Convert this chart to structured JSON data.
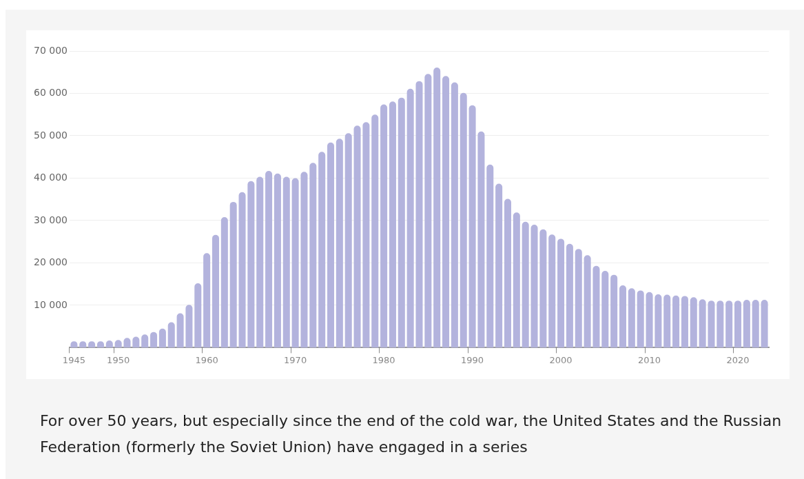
{
  "chart_data": {
    "type": "bar",
    "categories": [
      "1945",
      null,
      null,
      null,
      null,
      "1950",
      null,
      null,
      null,
      null,
      null,
      null,
      null,
      null,
      null,
      "1960",
      null,
      null,
      null,
      null,
      null,
      null,
      null,
      null,
      null,
      "1970",
      null,
      null,
      null,
      null,
      null,
      null,
      null,
      null,
      null,
      "1980",
      null,
      null,
      null,
      null,
      null,
      null,
      null,
      null,
      null,
      "1990",
      null,
      null,
      null,
      null,
      null,
      null,
      null,
      null,
      null,
      "2000",
      null,
      null,
      null,
      null,
      null,
      null,
      null,
      null,
      null,
      "2010",
      null,
      null,
      null,
      null,
      null,
      null,
      null,
      null,
      null,
      "2020",
      null,
      null,
      null
    ],
    "values": [
      1500,
      1500,
      1500,
      1500,
      1700,
      1800,
      2300,
      2600,
      3100,
      3700,
      4500,
      6000,
      8100,
      10100,
      15200,
      22300,
      26600,
      30800,
      34400,
      36700,
      39300,
      40300,
      41700,
      41100,
      40300,
      40000,
      41500,
      43600,
      46200,
      48400,
      49300,
      50600,
      52400,
      53200,
      55000,
      57400,
      58100,
      59000,
      61100,
      62900,
      64600,
      66100,
      64100,
      62600,
      60100,
      57200,
      51000,
      43200,
      38700,
      35100,
      31900,
      29700,
      29000,
      27900,
      26700,
      25700,
      24500,
      23300,
      21800,
      19300,
      18100,
      17200,
      14700,
      14000,
      13500,
      13100,
      12600,
      12500,
      12300,
      12200,
      11900,
      11400,
      11100,
      11100,
      11100,
      11100,
      11300,
      11300,
      11300
    ],
    "color": "#b3b3dd",
    "ylim": [
      0,
      70000
    ],
    "yticks": [
      {
        "value": 10000,
        "label": "10 000"
      },
      {
        "value": 20000,
        "label": "20 000"
      },
      {
        "value": 30000,
        "label": "30 000"
      },
      {
        "value": 40000,
        "label": "40 000"
      },
      {
        "value": 50000,
        "label": "50 000"
      },
      {
        "value": 60000,
        "label": "60 000"
      },
      {
        "value": 70000,
        "label": "70 000"
      }
    ],
    "grid": "y",
    "annotations": [
      "For over 50 years, but especially since the end of the cold war, the United States and the Russian Federation (formerly the Soviet Union) have engaged in a series"
    ]
  }
}
